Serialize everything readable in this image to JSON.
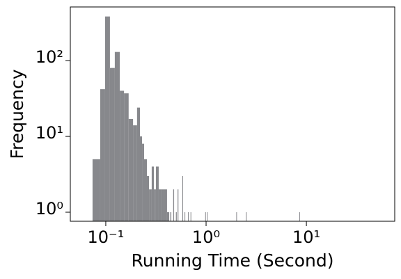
{
  "chart_data": {
    "type": "histogram",
    "xlabel": "Running Time (Second)",
    "ylabel": "Frequency",
    "color": "#87888c",
    "xscale": "log",
    "yscale": "log",
    "bins": [
      0.0738,
      0.088,
      0.0984,
      0.11,
      0.123,
      0.138,
      0.152,
      0.169,
      0.187,
      0.205,
      0.219,
      0.23,
      0.241,
      0.257,
      0.27,
      0.287,
      0.302,
      0.316,
      0.337,
      0.359,
      0.383,
      0.408,
      0.429,
      0.44,
      0.45,
      0.47,
      0.48,
      0.5,
      0.51,
      0.52,
      0.53,
      0.58,
      0.59,
      0.61,
      0.62,
      0.66,
      0.67,
      0.7,
      0.71,
      0.98,
      0.99,
      1.02,
      1.03,
      2.0,
      2.01,
      2.5,
      2.51,
      8.5,
      8.51
    ],
    "counts": [
      5,
      42,
      382,
      80,
      130,
      40,
      37,
      17,
      14,
      24,
      10,
      8,
      5,
      3,
      2,
      4,
      2,
      4,
      2,
      2,
      2,
      1,
      0,
      1,
      0,
      2,
      0,
      1,
      0,
      2,
      0,
      3,
      0,
      1,
      0,
      1,
      0,
      1,
      0,
      1,
      0,
      1,
      0,
      1,
      0,
      1,
      0,
      1
    ],
    "xlim": [
      0.0443,
      76
    ],
    "ylim": [
      0.76,
      510
    ],
    "xticks": [
      {
        "value": 0.1,
        "label": "10⁻¹"
      },
      {
        "value": 1,
        "label": "10⁰"
      },
      {
        "value": 10,
        "label": "10¹"
      }
    ],
    "yticks": [
      {
        "value": 1,
        "label": "10⁰"
      },
      {
        "value": 10,
        "label": "10¹"
      },
      {
        "value": 100,
        "label": "10²"
      }
    ]
  }
}
